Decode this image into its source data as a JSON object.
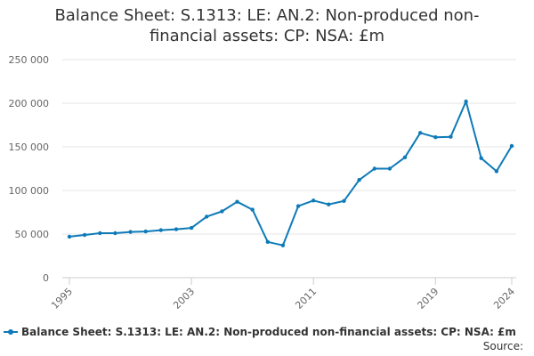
{
  "chart_data": {
    "type": "line",
    "title": "Balance Sheet: S.1313: LE: AN.2: Non-produced non-financial assets: CP: NSA: £m",
    "xlabel": "",
    "ylabel": "",
    "x": [
      1995,
      1996,
      1997,
      1998,
      1999,
      2000,
      2001,
      2002,
      2003,
      2004,
      2005,
      2006,
      2007,
      2008,
      2009,
      2010,
      2011,
      2012,
      2013,
      2014,
      2015,
      2016,
      2017,
      2018,
      2019,
      2020,
      2021,
      2022,
      2023,
      2024
    ],
    "x_tick_labels": [
      "1995",
      "2003",
      "2011",
      "2019",
      "2024"
    ],
    "y_tick_labels": [
      "0",
      "50 000",
      "100 000",
      "150 000",
      "200 000",
      "250 000"
    ],
    "ylim": [
      0,
      250000
    ],
    "grid": "horizontal",
    "legend_position": "bottom",
    "series": [
      {
        "name": "Balance Sheet: S.1313: LE: AN.2: Non-produced non-financial assets: CP: NSA: £m",
        "color": "#0e7ab8",
        "values": [
          47000,
          49000,
          51000,
          51000,
          52500,
          53000,
          54500,
          55500,
          57000,
          70000,
          76000,
          87000,
          78000,
          41000,
          37000,
          82000,
          88500,
          84000,
          88000,
          112000,
          125000,
          125000,
          138000,
          166000,
          161000,
          161500,
          202000,
          137000,
          122000,
          151000
        ]
      }
    ],
    "source_label": "Source:"
  }
}
